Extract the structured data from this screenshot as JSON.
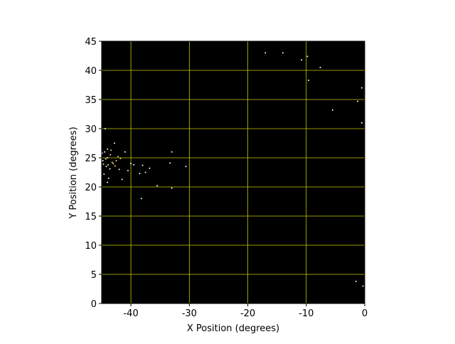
{
  "chart_data": {
    "type": "scatter",
    "x_label": "X Position (degrees)",
    "y_label": "Y Position (degrees)",
    "xlim": [
      -45,
      0
    ],
    "ylim": [
      0,
      45
    ],
    "xticks": [
      -40,
      -30,
      -20,
      -10,
      0
    ],
    "yticks": [
      0,
      5,
      10,
      15,
      20,
      25,
      30,
      35,
      40,
      45
    ],
    "grid": true,
    "grid_color": "#c8c800",
    "background": "#000000",
    "series": [
      {
        "color": "#ffffff",
        "x": [
          -17,
          -14,
          -10.8,
          -9.8,
          -7.6,
          -9.6,
          -0.5,
          -5.5,
          -1.2,
          -0.5,
          -1.5,
          -0.3,
          -33,
          -33.3,
          -30.6,
          -33,
          -38.2,
          -37.5,
          -36.8,
          -38.5,
          -42,
          -44,
          -44.5,
          -44.2,
          -41,
          -40,
          -39.5,
          -42.8,
          -44.4,
          -43.8,
          -41.5,
          -44.8,
          -44,
          -38,
          -40.5,
          -44.6,
          -44,
          -35.5,
          -44.9,
          -43.6
        ],
        "y": [
          43,
          43,
          41.8,
          42.4,
          40.5,
          38.3,
          37,
          33.2,
          34.7,
          31,
          3.8,
          3,
          26,
          24.1,
          23.5,
          19.8,
          18,
          22.5,
          23.2,
          22.3,
          23,
          25,
          26,
          23.5,
          26,
          24,
          23.8,
          27.5,
          30,
          21.5,
          21.3,
          24.5,
          26.5,
          23.7,
          22.8,
          22.2,
          20.8,
          20.2,
          25.8,
          23.1
        ]
      },
      {
        "color": "#ffe080",
        "x": [
          -43,
          -43.5,
          -42.5,
          -43.2,
          -42.2,
          -44.3,
          -43.9,
          -42.7,
          -44.7,
          -41.8,
          -43.4
        ],
        "y": [
          24,
          25.5,
          24.5,
          24.2,
          25.2,
          24.8,
          23.8,
          23.6,
          23.9,
          24.9,
          26.3
        ]
      }
    ]
  }
}
